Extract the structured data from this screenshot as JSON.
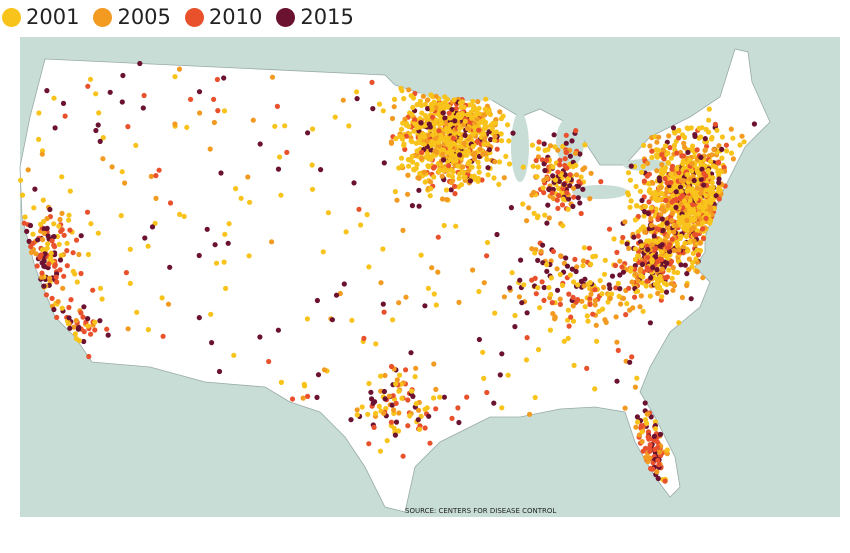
{
  "legend": {
    "items": [
      {
        "label": "2001",
        "color": "#f8c31b"
      },
      {
        "label": "2005",
        "color": "#f39a21"
      },
      {
        "label": "2010",
        "color": "#e9512c"
      },
      {
        "label": "2015",
        "color": "#6b1230"
      }
    ]
  },
  "source": "SOURCE: CENTERS FOR DISEASE CONTROL"
}
